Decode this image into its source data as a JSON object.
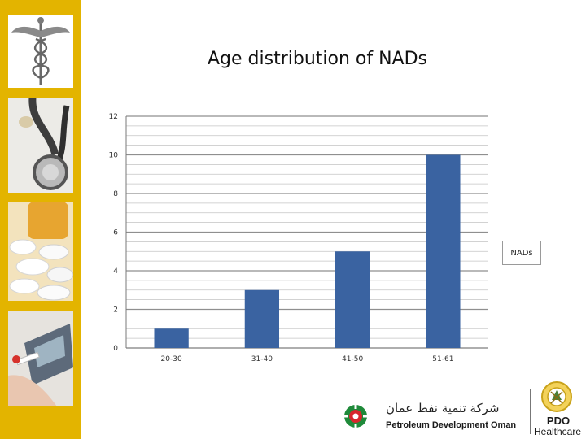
{
  "slide": {
    "title": "Age distribution of NADs"
  },
  "chart_data": {
    "type": "bar",
    "title": "Age distribution of NADs",
    "categories": [
      "20-30",
      "31-40",
      "41-50",
      "51-61"
    ],
    "series": [
      {
        "name": "NADs",
        "values": [
          1,
          3,
          5,
          10
        ],
        "color": "#3a63a1"
      }
    ],
    "ylim": [
      0,
      12
    ],
    "ytick_labels": [
      "0",
      "2",
      "4",
      "6",
      "8",
      "10",
      "12"
    ],
    "y_gridline_step": 0.5,
    "grid": true,
    "legend": "right"
  },
  "sidebar": {
    "background_color": "#e3b400",
    "images": [
      "caduceus-icon",
      "stethoscope-icon",
      "pills-icon",
      "glucose-meter-icon"
    ]
  },
  "footer": {
    "company_arabic": "شركة تنمية نفط عمان",
    "company_name": "Petroleum Development Oman",
    "unit_title": "PDO",
    "unit_subtitle": "Healthcare"
  }
}
